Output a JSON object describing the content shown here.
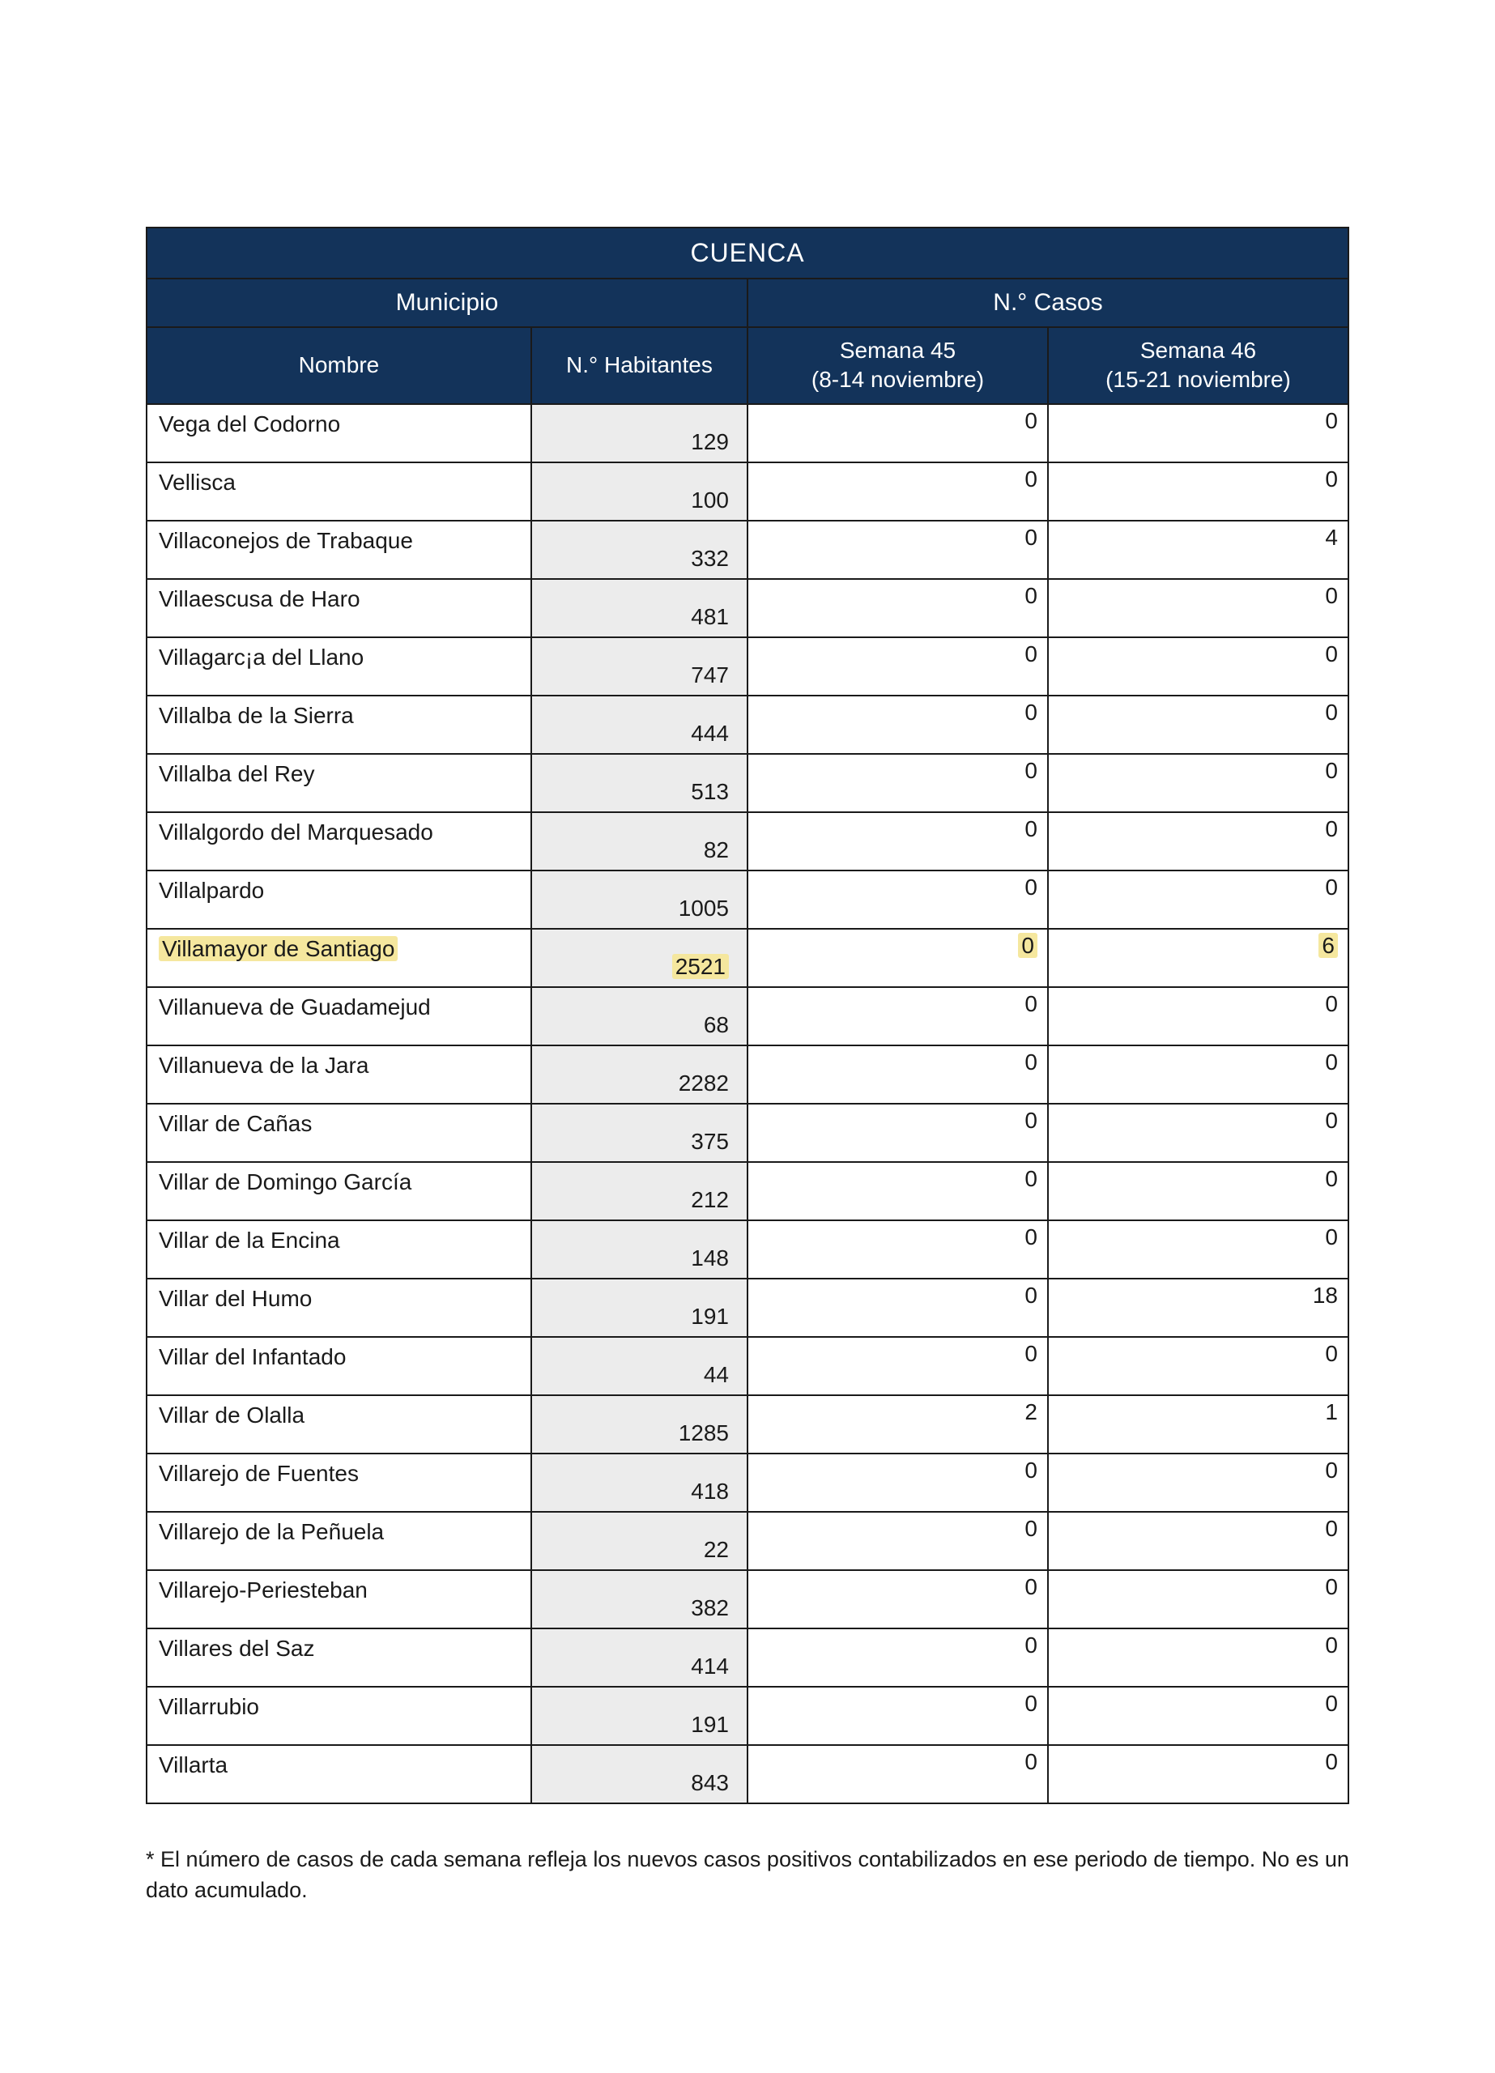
{
  "title": "CUENCA",
  "group_municipio": "Municipio",
  "group_casos": "N.° Casos",
  "col_nombre": "Nombre",
  "col_habitantes": "N.° Habitantes",
  "col_semana45_line1": "Semana 45",
  "col_semana45_line2": "(8-14 noviembre)",
  "col_semana46_line1": "Semana 46",
  "col_semana46_line2": "(15-21 noviembre)",
  "footnote": "* El número de casos de cada semana refleja los nuevos casos positivos contabilizados en ese periodo de tiempo. No es un dato acumulado.",
  "highlight_color": "#f5e79e",
  "header_bg": "#13335a",
  "hab_bg": "#ececec",
  "rows": [
    {
      "name": "Vega del Codorno",
      "hab": "129",
      "s45": "0",
      "s46": "0",
      "hl": false
    },
    {
      "name": "Vellisca",
      "hab": "100",
      "s45": "0",
      "s46": "0",
      "hl": false
    },
    {
      "name": "Villaconejos de Trabaque",
      "hab": "332",
      "s45": "0",
      "s46": "4",
      "hl": false
    },
    {
      "name": "Villaescusa de Haro",
      "hab": "481",
      "s45": "0",
      "s46": "0",
      "hl": false
    },
    {
      "name": "Villagarc¡a del Llano",
      "hab": "747",
      "s45": "0",
      "s46": "0",
      "hl": false
    },
    {
      "name": "Villalba de la Sierra",
      "hab": "444",
      "s45": "0",
      "s46": "0",
      "hl": false
    },
    {
      "name": "Villalba del Rey",
      "hab": "513",
      "s45": "0",
      "s46": "0",
      "hl": false
    },
    {
      "name": "Villalgordo del Marquesado",
      "hab": "82",
      "s45": "0",
      "s46": "0",
      "hl": false
    },
    {
      "name": "Villalpardo",
      "hab": "1005",
      "s45": "0",
      "s46": "0",
      "hl": false
    },
    {
      "name": "Villamayor de Santiago",
      "hab": "2521",
      "s45": "0",
      "s46": "6",
      "hl": true
    },
    {
      "name": "Villanueva de Guadamejud",
      "hab": "68",
      "s45": "0",
      "s46": "0",
      "hl": false
    },
    {
      "name": "Villanueva de la Jara",
      "hab": "2282",
      "s45": "0",
      "s46": "0",
      "hl": false
    },
    {
      "name": "Villar de Cañas",
      "hab": "375",
      "s45": "0",
      "s46": "0",
      "hl": false
    },
    {
      "name": "Villar de Domingo García",
      "hab": "212",
      "s45": "0",
      "s46": "0",
      "hl": false
    },
    {
      "name": "Villar de la Encina",
      "hab": "148",
      "s45": "0",
      "s46": "0",
      "hl": false
    },
    {
      "name": "Villar del Humo",
      "hab": "191",
      "s45": "0",
      "s46": "18",
      "hl": false
    },
    {
      "name": "Villar del Infantado",
      "hab": "44",
      "s45": "0",
      "s46": "0",
      "hl": false
    },
    {
      "name": "Villar de Olalla",
      "hab": "1285",
      "s45": "2",
      "s46": "1",
      "hl": false
    },
    {
      "name": "Villarejo de Fuentes",
      "hab": "418",
      "s45": "0",
      "s46": "0",
      "hl": false
    },
    {
      "name": "Villarejo de la Peñuela",
      "hab": "22",
      "s45": "0",
      "s46": "0",
      "hl": false
    },
    {
      "name": "Villarejo-Periesteban",
      "hab": "382",
      "s45": "0",
      "s46": "0",
      "hl": false
    },
    {
      "name": "Villares del Saz",
      "hab": "414",
      "s45": "0",
      "s46": "0",
      "hl": false
    },
    {
      "name": "Villarrubio",
      "hab": "191",
      "s45": "0",
      "s46": "0",
      "hl": false
    },
    {
      "name": "Villarta",
      "hab": "843",
      "s45": "0",
      "s46": "0",
      "hl": false
    }
  ]
}
